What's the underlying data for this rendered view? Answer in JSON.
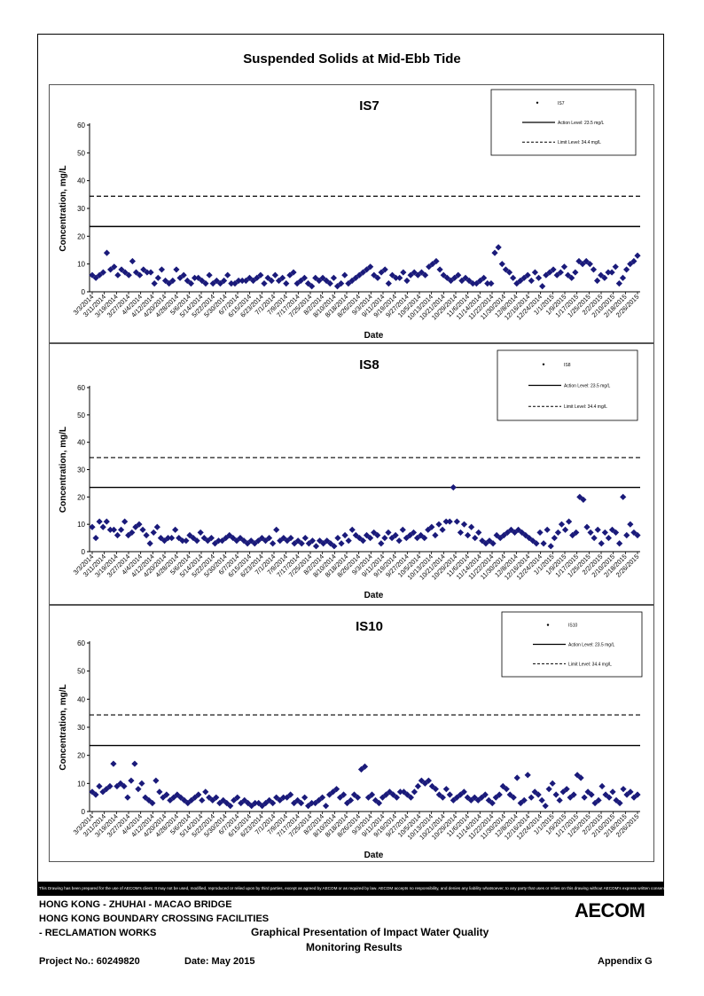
{
  "page_title": "Suspended Solids at Mid-Ebb Tide",
  "disclaimer": "This Drawing has been prepared for the use of AECOM's client. It may not be used, modified, reproduced or relied upon by third parties, except as agreed by AECOM or as required by law. AECOM accepts no responsibility, and denies any liability whatsoever, to any party that uses or relies on this drawing without AECOM's express written consent.",
  "footer": {
    "line1": "HONG KONG - ZHUHAI - MACAO BRIDGE",
    "line2": "HONG KONG BOUNDARY CROSSING FACILITIES",
    "line3": "- RECLAMATION WORKS",
    "heading1": "Graphical Presentation of Impact Water Quality",
    "heading2": "Monitoring Results",
    "project": "Project No.: 60249820",
    "date": "Date: May 2015",
    "appendix": "Appendix G",
    "logo": "AECOM"
  },
  "colors": {
    "marker": "#1a1a7a",
    "lines": "#000000",
    "border": "#555555"
  },
  "chart_data": [
    {
      "type": "scatter",
      "title": "IS7",
      "xlabel": "Date",
      "ylabel": "Concentration, mg/L",
      "ylim": [
        0,
        60
      ],
      "yticks": [
        0,
        10,
        20,
        30,
        40,
        50,
        60
      ],
      "xticks": [
        "3/3/2014",
        "3/11/2014",
        "3/19/2014",
        "3/27/2014",
        "4/4/2014",
        "4/12/2014",
        "4/20/2014",
        "4/28/2014",
        "5/6/2014",
        "5/14/2014",
        "5/22/2014",
        "5/30/2014",
        "6/7/2014",
        "6/15/2014",
        "6/23/2014",
        "7/1/2014",
        "7/9/2014",
        "7/17/2014",
        "7/25/2014",
        "8/2/2014",
        "8/10/2014",
        "8/18/2014",
        "8/26/2014",
        "9/3/2014",
        "9/11/2014",
        "9/19/2014",
        "9/27/2014",
        "10/5/2014",
        "10/13/2014",
        "10/21/2014",
        "10/29/2014",
        "11/6/2014",
        "11/14/2014",
        "11/22/2014",
        "11/30/2014",
        "12/8/2014",
        "12/16/2014",
        "12/24/2014",
        "1/1/2015",
        "1/9/2015",
        "1/17/2015",
        "1/25/2015",
        "2/2/2015",
        "2/10/2015",
        "2/18/2015",
        "2/26/2015"
      ],
      "legend": {
        "marker_label": "IS7",
        "action_label": "Action Level: 23.5 mg/L",
        "limit_label": "Limit Level: 34.4 mg/L"
      },
      "action_level": 23.5,
      "limit_level": 34.4,
      "values": [
        6,
        5,
        6,
        7,
        14,
        8,
        9,
        6,
        8,
        7,
        6,
        11,
        7,
        6,
        8,
        7,
        7,
        3,
        5,
        8,
        4,
        3,
        4,
        8,
        5,
        6,
        4,
        3,
        5,
        5,
        4,
        3,
        6,
        3,
        4,
        3,
        4,
        6,
        3,
        3,
        4,
        4,
        4,
        5,
        4,
        5,
        6,
        3,
        5,
        4,
        6,
        4,
        5,
        3,
        6,
        7,
        3,
        4,
        5,
        3,
        2,
        5,
        4,
        5,
        4,
        3,
        5,
        2,
        3,
        6,
        3,
        4,
        5,
        6,
        7,
        8,
        9,
        6,
        5,
        7,
        8,
        3,
        6,
        5,
        5,
        7,
        4,
        6,
        7,
        6,
        7,
        6,
        9,
        10,
        11,
        8,
        6,
        5,
        4,
        5,
        6,
        4,
        5,
        4,
        3,
        3,
        4,
        5,
        3,
        3,
        14,
        16,
        10,
        8,
        7,
        5,
        3,
        4,
        5,
        6,
        4,
        7,
        5,
        2,
        6,
        7,
        8,
        6,
        7,
        9,
        6,
        5,
        7,
        11,
        10,
        11,
        10,
        8,
        4,
        6,
        5,
        7,
        7,
        9,
        3,
        5,
        8,
        10,
        11,
        13
      ]
    },
    {
      "type": "scatter",
      "title": "IS8",
      "xlabel": "Date",
      "ylabel": "Concentration, mg/L",
      "ylim": [
        0,
        60
      ],
      "yticks": [
        0,
        10,
        20,
        30,
        40,
        50,
        60
      ],
      "xticks": [
        "3/3/2014",
        "3/11/2014",
        "3/19/2014",
        "3/27/2014",
        "4/4/2014",
        "4/12/2014",
        "4/20/2014",
        "4/28/2014",
        "5/6/2014",
        "5/14/2014",
        "5/22/2014",
        "5/30/2014",
        "6/7/2014",
        "6/15/2014",
        "6/23/2014",
        "7/1/2014",
        "7/9/2014",
        "7/17/2014",
        "7/25/2014",
        "8/2/2014",
        "8/10/2014",
        "8/18/2014",
        "8/26/2014",
        "9/3/2014",
        "9/11/2014",
        "9/19/2014",
        "9/27/2014",
        "10/5/2014",
        "10/13/2014",
        "10/21/2014",
        "10/29/2014",
        "11/6/2014",
        "11/14/2014",
        "11/22/2014",
        "11/30/2014",
        "12/8/2014",
        "12/16/2014",
        "12/24/2014",
        "1/1/2015",
        "1/9/2015",
        "1/17/2015",
        "1/25/2015",
        "2/2/2015",
        "2/10/2015",
        "2/18/2015",
        "2/26/2015"
      ],
      "legend": {
        "marker_label": "IS8",
        "action_label": "Action Level: 23.5 mg/L",
        "limit_label": "Limit Level: 34.4 mg/L"
      },
      "action_level": 23.5,
      "limit_level": 34.4,
      "values": [
        9,
        5,
        11,
        9,
        11,
        8,
        8,
        6,
        8,
        11,
        6,
        7,
        9,
        10,
        8,
        6,
        3,
        7,
        9,
        5,
        4,
        5,
        5,
        8,
        5,
        4,
        4,
        6,
        5,
        4,
        7,
        5,
        4,
        5,
        3,
        4,
        4,
        5,
        6,
        5,
        4,
        5,
        4,
        3,
        4,
        3,
        4,
        5,
        4,
        5,
        3,
        8,
        4,
        5,
        4,
        5,
        3,
        4,
        3,
        5,
        3,
        4,
        2,
        4,
        3,
        4,
        3,
        2,
        5,
        3,
        6,
        4,
        8,
        6,
        5,
        4,
        6,
        5,
        7,
        6,
        3,
        5,
        7,
        5,
        6,
        4,
        8,
        5,
        6,
        7,
        5,
        6,
        5,
        8,
        9,
        6,
        10,
        8,
        11,
        11,
        23.5,
        11,
        7,
        10,
        6,
        9,
        5,
        7,
        4,
        3,
        4,
        3,
        6,
        5,
        6,
        7,
        8,
        7,
        8,
        7,
        6,
        5,
        4,
        3,
        7,
        3,
        8,
        2,
        5,
        7,
        10,
        8,
        11,
        6,
        7,
        20,
        19,
        9,
        7,
        5,
        8,
        3,
        7,
        5,
        8,
        7,
        3,
        20,
        6,
        10,
        7,
        6
      ]
    },
    {
      "type": "scatter",
      "title": "IS10",
      "xlabel": "Date",
      "ylabel": "Concentration, mg/L",
      "ylim": [
        0,
        60
      ],
      "yticks": [
        0,
        10,
        20,
        30,
        40,
        50,
        60
      ],
      "xticks": [
        "3/3/2014",
        "3/11/2014",
        "3/19/2014",
        "3/27/2014",
        "4/4/2014",
        "4/12/2014",
        "4/20/2014",
        "4/28/2014",
        "5/6/2014",
        "5/14/2014",
        "5/22/2014",
        "5/30/2014",
        "6/7/2014",
        "6/15/2014",
        "6/23/2014",
        "7/1/2014",
        "7/9/2014",
        "7/17/2014",
        "7/25/2014",
        "8/2/2014",
        "8/10/2014",
        "8/18/2014",
        "8/26/2014",
        "9/3/2014",
        "9/11/2014",
        "9/19/2014",
        "9/27/2014",
        "10/5/2014",
        "10/13/2014",
        "10/21/2014",
        "10/29/2014",
        "11/6/2014",
        "11/14/2014",
        "11/22/2014",
        "11/30/2014",
        "12/8/2014",
        "12/16/2014",
        "12/24/2014",
        "1/1/2015",
        "1/9/2015",
        "1/17/2015",
        "1/25/2015",
        "2/2/2015",
        "2/10/2015",
        "2/18/2015",
        "2/26/2015"
      ],
      "legend": {
        "marker_label": "IS10",
        "action_label": "Action Level: 23.5 mg/L",
        "limit_label": "Limit Level: 34.4 mg/L"
      },
      "action_level": 23.5,
      "limit_level": 34.4,
      "values": [
        7,
        6,
        9,
        7,
        8,
        9,
        17,
        9,
        10,
        9,
        5,
        11,
        17,
        8,
        10,
        5,
        4,
        3,
        11,
        7,
        5,
        6,
        4,
        5,
        6,
        5,
        4,
        3,
        4,
        5,
        6,
        4,
        7,
        5,
        4,
        5,
        3,
        4,
        3,
        2,
        4,
        5,
        3,
        4,
        3,
        2,
        3,
        3,
        2,
        3,
        4,
        3,
        5,
        4,
        5,
        5,
        6,
        3,
        4,
        3,
        5,
        2,
        3,
        3,
        4,
        5,
        2,
        6,
        7,
        8,
        5,
        6,
        3,
        4,
        6,
        5,
        15,
        16,
        5,
        6,
        4,
        3,
        5,
        6,
        7,
        6,
        5,
        7,
        7,
        6,
        5,
        7,
        9,
        11,
        10,
        11,
        9,
        8,
        6,
        5,
        8,
        6,
        4,
        5,
        6,
        7,
        5,
        4,
        5,
        4,
        5,
        6,
        4,
        3,
        5,
        6,
        9,
        8,
        6,
        5,
        12,
        3,
        4,
        13,
        5,
        7,
        6,
        4,
        2,
        8,
        10,
        6,
        4,
        7,
        8,
        5,
        6,
        13,
        12,
        5,
        7,
        6,
        3,
        4,
        9,
        6,
        5,
        7,
        4,
        3,
        8,
        6,
        7,
        5,
        6
      ]
    }
  ]
}
